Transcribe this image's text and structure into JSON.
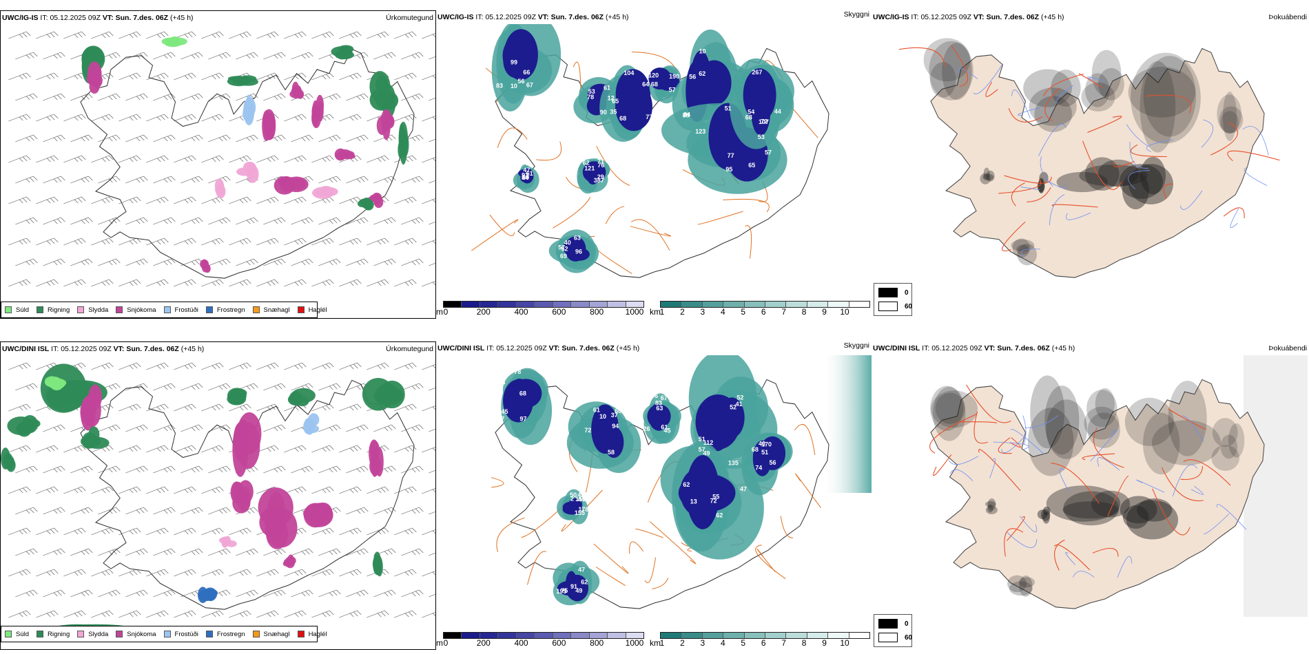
{
  "rows": [
    {
      "model": "UWC/IG-IS",
      "it_label": "IT:",
      "it_value": "05.12.2025 09Z",
      "vt_label": "VT: Sun. 7.des. 06Z",
      "lead": "(+45 h)",
      "panels": {
        "precip": {
          "title": "Úrkomutegund"
        },
        "visibility": {
          "title": "Skyggni",
          "labels": [
            "99",
            "78",
            "85",
            "57",
            "88",
            "65",
            "68",
            "71",
            "63",
            "61",
            "10",
            "35",
            "64",
            "49",
            "51",
            "53",
            "44",
            "62",
            "57",
            "47",
            "67",
            "12",
            "104",
            "68",
            "10",
            "123",
            "107",
            "121",
            "96",
            "69",
            "66",
            "90",
            "65",
            "190",
            "84",
            "57",
            "267",
            "387",
            "52",
            "84",
            "56",
            "53",
            "68",
            "120",
            "56",
            "77",
            "72",
            "76",
            "69",
            "93",
            "83",
            "61",
            "77",
            "60",
            "62",
            "95",
            "54",
            "29",
            "40"
          ]
        },
        "fog": {
          "title": "Þokuábendi"
        }
      }
    },
    {
      "model": "UWC/DINI ISL",
      "it_label": "IT:",
      "it_value": "05.12.2025 09Z",
      "vt_label": "VT: Sun. 7.des. 06Z",
      "lead": "(+45 h)",
      "panels": {
        "precip": {
          "title": "Úrkomutegund"
        },
        "visibility": {
          "title": "Skyggni",
          "labels": [
            "62",
            "61",
            "83",
            "49",
            "47",
            "45",
            "91",
            "56",
            "68",
            "10",
            "67",
            "57",
            "62",
            "50",
            "49",
            "68",
            "45",
            "60",
            "63",
            "112",
            "72",
            "178",
            "62",
            "51",
            "97",
            "58",
            "61",
            "52",
            "55",
            "44",
            "47",
            "74",
            "77",
            "72",
            "45",
            "41",
            "135",
            "155",
            "75",
            "170",
            "78",
            "94",
            "106",
            "51",
            "62",
            "155",
            "195",
            "40",
            "73",
            "37",
            "26",
            "52",
            "13",
            "2"
          ]
        },
        "fog": {
          "title": "Þokuábendi"
        }
      }
    }
  ],
  "precip_legend": [
    {
      "label": "Súld",
      "color": "#7ee87e"
    },
    {
      "label": "Rigning",
      "color": "#2e8b57"
    },
    {
      "label": "Slydda",
      "color": "#f0a6d6"
    },
    {
      "label": "Snjókoma",
      "color": "#c2449a"
    },
    {
      "label": "Frostúði",
      "color": "#9cc4f0"
    },
    {
      "label": "Frostregn",
      "color": "#2f6fbf"
    },
    {
      "label": "Snæhagl",
      "color": "#f59a1a"
    },
    {
      "label": "Haglél",
      "color": "#e01010"
    }
  ],
  "height_colorbar": {
    "unit": "m",
    "ticks": [
      "0",
      "200",
      "400",
      "600",
      "800",
      "1000"
    ],
    "colors": [
      "#000000",
      "#1a1a8c",
      "#262694",
      "#33339c",
      "#4646a6",
      "#5a5ab0",
      "#7070bc",
      "#8a8ac8",
      "#a4a4d6",
      "#c0c0e4",
      "#dcdcf2"
    ]
  },
  "visibility_colorbar": {
    "unit": "km",
    "ticks": [
      "1",
      "2",
      "3",
      "4",
      "5",
      "6",
      "7",
      "8",
      "9",
      "10"
    ],
    "colors": [
      "#1d7a76",
      "#3a8c88",
      "#55a09c",
      "#6eb0ac",
      "#88c0bc",
      "#a2d0cc",
      "#bcdeda",
      "#d6ecea",
      "#eef8f6",
      "#ffffff"
    ]
  },
  "fog_legend": [
    {
      "label": "0",
      "color": "#000000"
    },
    {
      "label": "60",
      "color": "#ffffff"
    }
  ]
}
